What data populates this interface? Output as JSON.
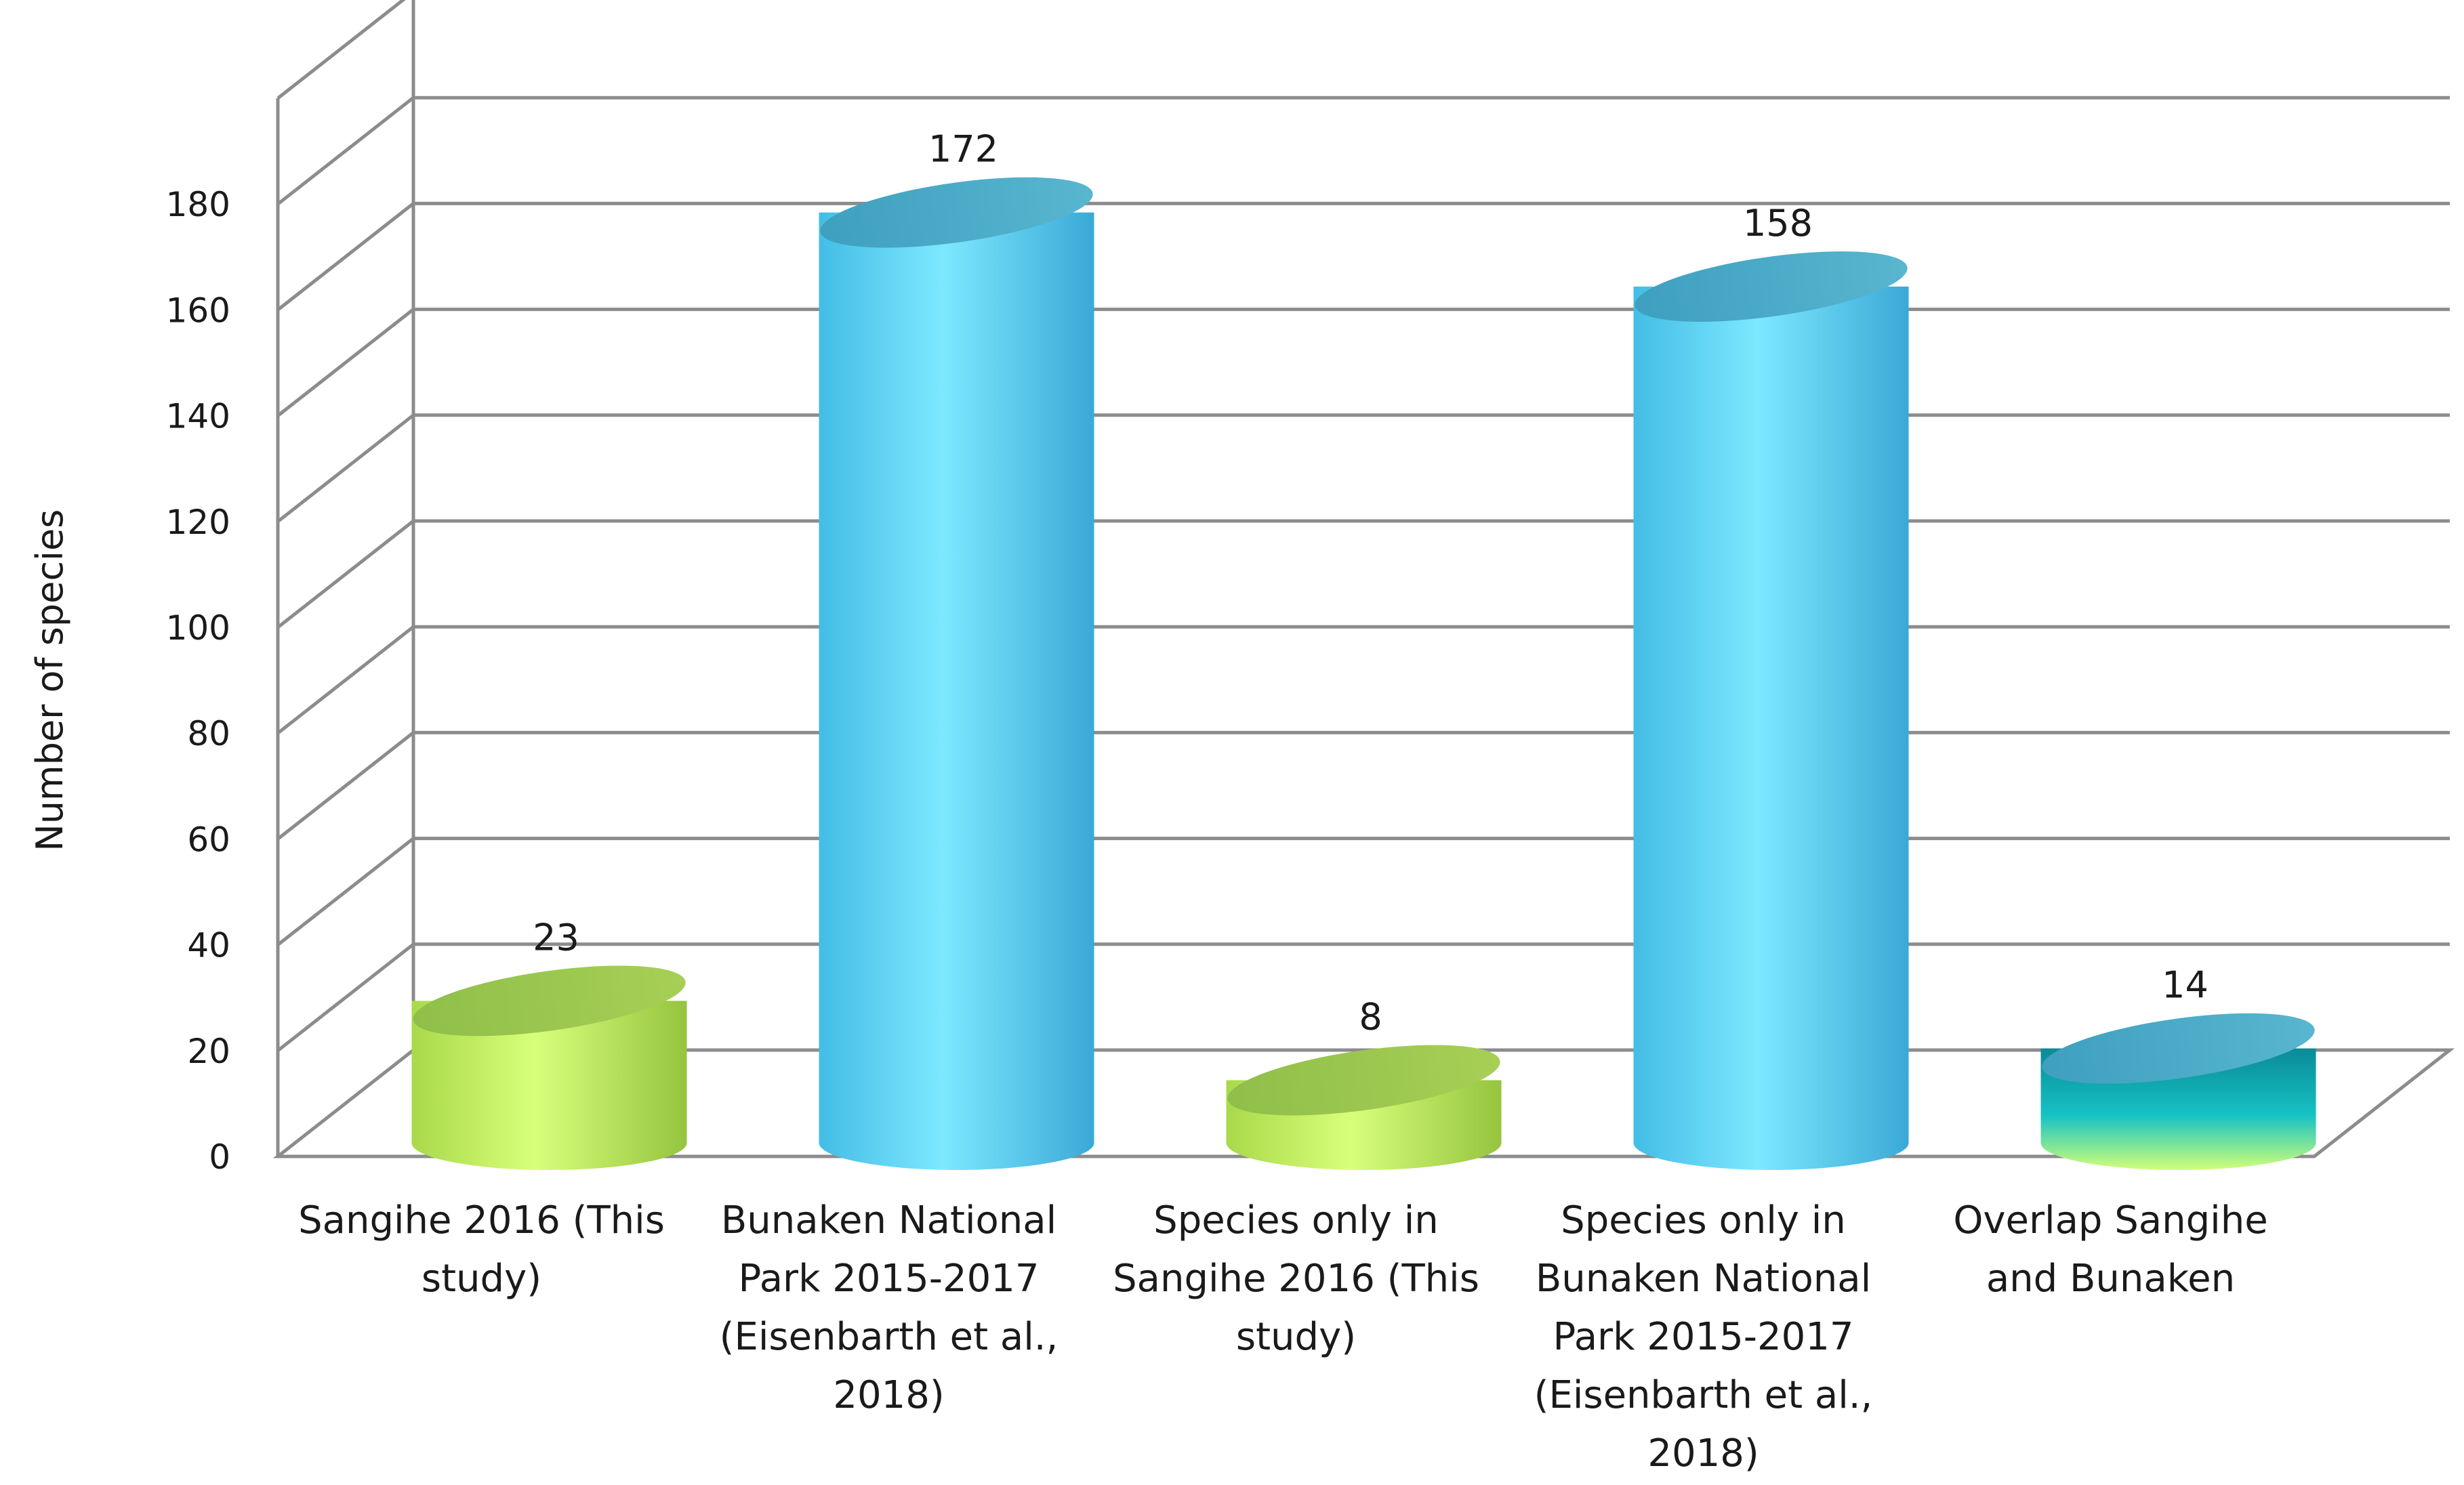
{
  "chart_data": {
    "type": "bar",
    "style": "3d-cylinder",
    "title": "",
    "xlabel": "",
    "ylabel": "Number of species",
    "ylim": [
      0,
      180
    ],
    "ytick_step": 20,
    "yticks": [
      "0",
      "20",
      "40",
      "60",
      "80",
      "100",
      "120",
      "140",
      "160",
      "180"
    ],
    "grid": true,
    "legend": "none",
    "categories": [
      [
        "Sangihe 2016 (This",
        "study)"
      ],
      [
        "Bunaken National",
        "Park 2015-2017",
        "(Eisenbarth et al.,",
        "2018)"
      ],
      [
        "Species only in",
        "Sangihe 2016 (This",
        "study)"
      ],
      [
        "Species only in",
        "Bunaken National",
        "Park 2015-2017",
        "(Eisenbarth et al.,",
        "2018)"
      ],
      [
        "Overlap Sangihe",
        "and Bunaken"
      ]
    ],
    "values": [
      23,
      172,
      8,
      158,
      14
    ],
    "data_labels": [
      "23",
      "172",
      "8",
      "158",
      "14"
    ],
    "bar_colors": [
      "green",
      "blue",
      "green",
      "blue",
      "teal"
    ]
  },
  "colors": {
    "green": "#c5f060",
    "blue": "#5fd4f4",
    "teal": "#18b3b8",
    "gridline": "#8c8c8c",
    "text": "#1a1a1a"
  }
}
